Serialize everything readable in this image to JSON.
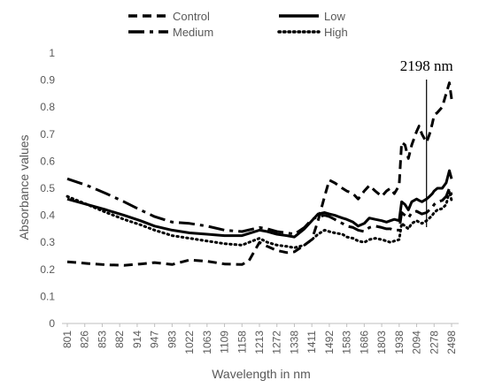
{
  "chart_data": {
    "type": "line",
    "xlabel": "Wavelength in nm",
    "ylabel": "Absorbance values",
    "ylim": [
      0,
      1
    ],
    "yticks": [
      "0",
      "0.1",
      "0.2",
      "0.3",
      "0.4",
      "0.5",
      "0.6",
      "0.7",
      "0.8",
      "0.9",
      "1"
    ],
    "xtick_labels": [
      "801",
      "826",
      "853",
      "882",
      "914",
      "947",
      "983",
      "1022",
      "1063",
      "1109",
      "1158",
      "1213",
      "1272",
      "1338",
      "1411",
      "1492",
      "1583",
      "1686",
      "1803",
      "1938",
      "2094",
      "2278",
      "2498"
    ],
    "grid": false,
    "legend_position": "top",
    "annotation": {
      "text": "2198 nm",
      "x": 2198
    },
    "series": [
      {
        "name": "Control",
        "color": "#000000",
        "dash": "long-dash",
        "x": [
          801,
          830,
          860,
          890,
          920,
          947,
          983,
          1022,
          1063,
          1109,
          1158,
          1180,
          1213,
          1240,
          1272,
          1310,
          1338,
          1380,
          1411,
          1440,
          1470,
          1492,
          1520,
          1560,
          1583,
          1620,
          1650,
          1686,
          1720,
          1760,
          1803,
          1840,
          1870,
          1900,
          1938,
          1960,
          1990,
          2020,
          2050,
          2094,
          2120,
          2150,
          2198,
          2230,
          2260,
          2278,
          2320,
          2380,
          2430,
          2470,
          2498
        ],
        "y": [
          0.228,
          0.222,
          0.217,
          0.215,
          0.22,
          0.225,
          0.218,
          0.235,
          0.23,
          0.22,
          0.218,
          0.232,
          0.3,
          0.285,
          0.27,
          0.262,
          0.265,
          0.29,
          0.31,
          0.38,
          0.47,
          0.53,
          0.52,
          0.5,
          0.49,
          0.48,
          0.46,
          0.49,
          0.51,
          0.49,
          0.47,
          0.49,
          0.5,
          0.48,
          0.51,
          0.67,
          0.66,
          0.61,
          0.66,
          0.71,
          0.73,
          0.7,
          0.67,
          0.7,
          0.74,
          0.77,
          0.78,
          0.8,
          0.85,
          0.89,
          0.83
        ]
      },
      {
        "name": "Low",
        "color": "#000000",
        "dash": "solid",
        "x": [
          801,
          830,
          860,
          890,
          920,
          947,
          983,
          1022,
          1063,
          1109,
          1158,
          1213,
          1240,
          1272,
          1310,
          1338,
          1380,
          1411,
          1440,
          1470,
          1492,
          1520,
          1560,
          1583,
          1620,
          1650,
          1686,
          1720,
          1760,
          1803,
          1840,
          1870,
          1900,
          1938,
          1960,
          1990,
          2020,
          2050,
          2094,
          2120,
          2150,
          2198,
          2230,
          2260,
          2278,
          2320,
          2380,
          2430,
          2470,
          2498
        ],
        "y": [
          0.46,
          0.44,
          0.42,
          0.4,
          0.38,
          0.36,
          0.345,
          0.335,
          0.33,
          0.325,
          0.325,
          0.345,
          0.34,
          0.33,
          0.325,
          0.32,
          0.35,
          0.38,
          0.405,
          0.41,
          0.405,
          0.4,
          0.39,
          0.385,
          0.375,
          0.36,
          0.37,
          0.39,
          0.385,
          0.38,
          0.375,
          0.38,
          0.385,
          0.38,
          0.45,
          0.44,
          0.42,
          0.45,
          0.46,
          0.455,
          0.45,
          0.46,
          0.47,
          0.48,
          0.49,
          0.5,
          0.5,
          0.52,
          0.565,
          0.535
        ]
      },
      {
        "name": "Medium",
        "color": "#000000",
        "dash": "dash-dot",
        "x": [
          801,
          830,
          860,
          890,
          920,
          947,
          983,
          1022,
          1063,
          1109,
          1158,
          1213,
          1240,
          1272,
          1310,
          1338,
          1380,
          1411,
          1440,
          1470,
          1492,
          1520,
          1560,
          1583,
          1620,
          1650,
          1686,
          1720,
          1760,
          1803,
          1840,
          1870,
          1900,
          1938,
          1960,
          1990,
          2020,
          2050,
          2094,
          2120,
          2150,
          2198,
          2230,
          2260,
          2278,
          2320,
          2380,
          2430,
          2470,
          2498
        ],
        "y": [
          0.535,
          0.51,
          0.48,
          0.45,
          0.42,
          0.395,
          0.375,
          0.37,
          0.36,
          0.345,
          0.34,
          0.355,
          0.35,
          0.34,
          0.335,
          0.33,
          0.355,
          0.385,
          0.395,
          0.4,
          0.395,
          0.385,
          0.37,
          0.36,
          0.355,
          0.345,
          0.34,
          0.355,
          0.36,
          0.355,
          0.35,
          0.35,
          0.345,
          0.345,
          0.41,
          0.4,
          0.39,
          0.41,
          0.415,
          0.41,
          0.405,
          0.41,
          0.42,
          0.43,
          0.44,
          0.45,
          0.455,
          0.47,
          0.5,
          0.475
        ]
      },
      {
        "name": "High",
        "color": "#000000",
        "dash": "dotted",
        "x": [
          801,
          830,
          860,
          890,
          920,
          947,
          983,
          1022,
          1063,
          1109,
          1158,
          1213,
          1240,
          1272,
          1310,
          1338,
          1380,
          1411,
          1440,
          1470,
          1492,
          1520,
          1560,
          1583,
          1620,
          1650,
          1686,
          1720,
          1760,
          1803,
          1840,
          1870,
          1900,
          1938,
          1960,
          1990,
          2020,
          2050,
          2094,
          2120,
          2150,
          2198,
          2230,
          2260,
          2278,
          2320,
          2380,
          2430,
          2470,
          2498
        ],
        "y": [
          0.47,
          0.44,
          0.41,
          0.385,
          0.365,
          0.345,
          0.325,
          0.315,
          0.305,
          0.295,
          0.29,
          0.315,
          0.3,
          0.29,
          0.285,
          0.28,
          0.29,
          0.31,
          0.33,
          0.345,
          0.34,
          0.335,
          0.33,
          0.32,
          0.315,
          0.305,
          0.3,
          0.31,
          0.315,
          0.31,
          0.305,
          0.3,
          0.305,
          0.31,
          0.37,
          0.36,
          0.35,
          0.37,
          0.38,
          0.375,
          0.37,
          0.38,
          0.39,
          0.4,
          0.41,
          0.42,
          0.425,
          0.44,
          0.49,
          0.455
        ]
      }
    ]
  }
}
